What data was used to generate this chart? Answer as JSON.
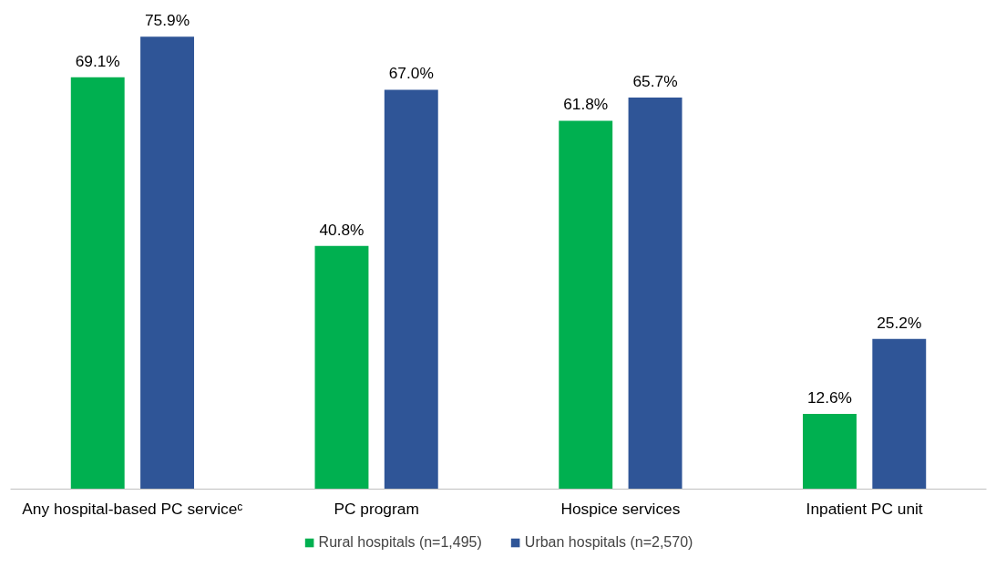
{
  "chart_data": {
    "type": "bar",
    "categories": [
      "Any hospital-based PC serviceᶜ",
      "PC program",
      "Hospice services",
      "Inpatient PC unit"
    ],
    "series": [
      {
        "name": "Rural hospitals (n=1,495)",
        "color": "#00b050",
        "values": [
          69.1,
          40.8,
          61.8,
          12.6
        ],
        "value_labels": [
          "69.1%",
          "40.8%",
          "61.8%",
          "12.6%"
        ]
      },
      {
        "name": "Urban hospitals (n=2,570)",
        "color": "#2f5597",
        "values": [
          75.9,
          67.0,
          65.7,
          25.2
        ],
        "value_labels": [
          "75.9%",
          "67.0%",
          "65.7%",
          "25.2%"
        ]
      }
    ],
    "tick_labels": "x",
    "grid": false,
    "legend": "bottom"
  }
}
